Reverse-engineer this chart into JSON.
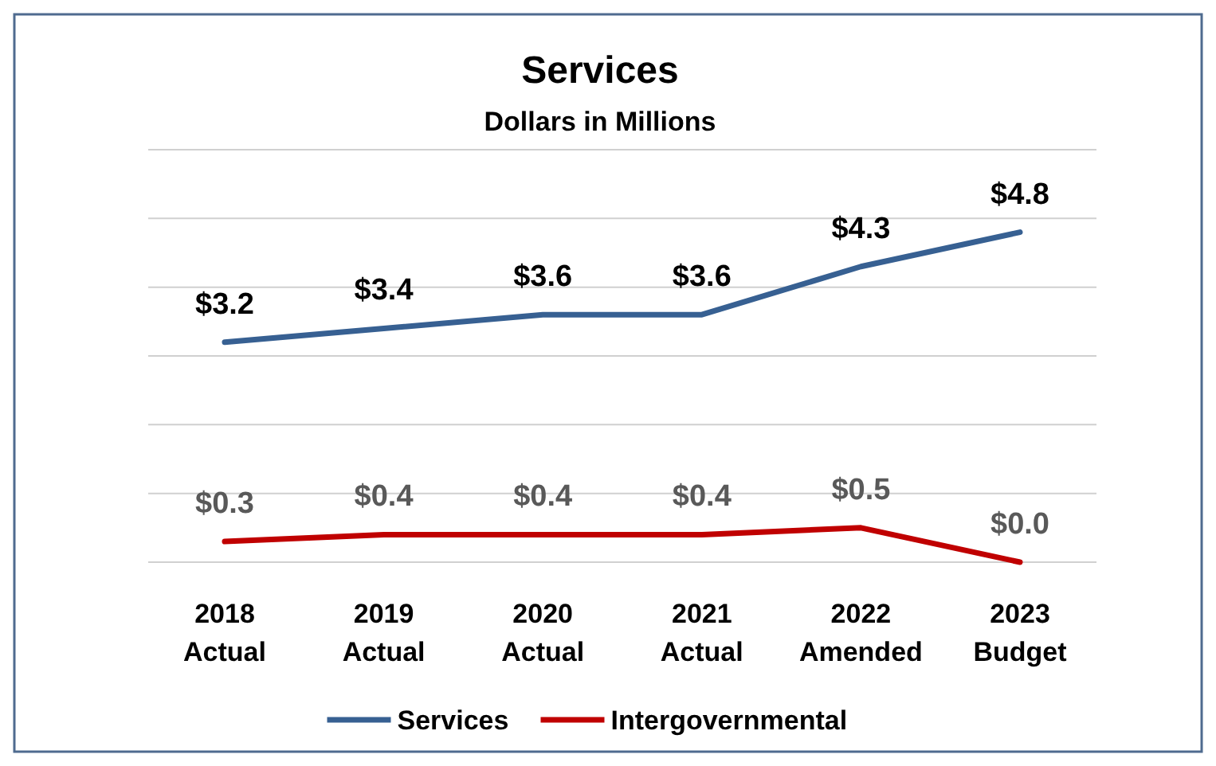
{
  "chart_data": {
    "type": "line",
    "title": "Services",
    "subtitle": "Dollars in Millions",
    "categories": [
      "2018 Actual",
      "2019 Actual",
      "2020 Actual",
      "2021 Actual",
      "2022 Amended",
      "2023 Budget"
    ],
    "series": [
      {
        "name": "Services",
        "color": "#376092",
        "values": [
          3.2,
          3.4,
          3.6,
          3.6,
          4.3,
          4.8
        ],
        "value_labels": [
          "$3.2",
          "$3.4",
          "$3.6",
          "$3.6",
          "$4.3",
          "$4.8"
        ]
      },
      {
        "name": "Intergovernmental",
        "color": "#c00000",
        "values": [
          0.3,
          0.4,
          0.4,
          0.4,
          0.5,
          0.0
        ],
        "value_labels": [
          "$0.3",
          "$0.4",
          "$0.4",
          "$0.4",
          "$0.5",
          "$0.0"
        ]
      }
    ],
    "ylim": [
      0,
      6
    ],
    "yticks": [
      {
        "value": 0,
        "label": null
      },
      {
        "value": 1,
        "label": null
      },
      {
        "value": 2,
        "label": null
      },
      {
        "value": 3,
        "label": null
      },
      {
        "value": 4,
        "label": null
      },
      {
        "value": 5,
        "label": null
      },
      {
        "value": 6,
        "label": null
      }
    ],
    "grid": "y",
    "tick_labels": "x",
    "legend": "bottom",
    "marker": "none",
    "line_style": "solid"
  }
}
